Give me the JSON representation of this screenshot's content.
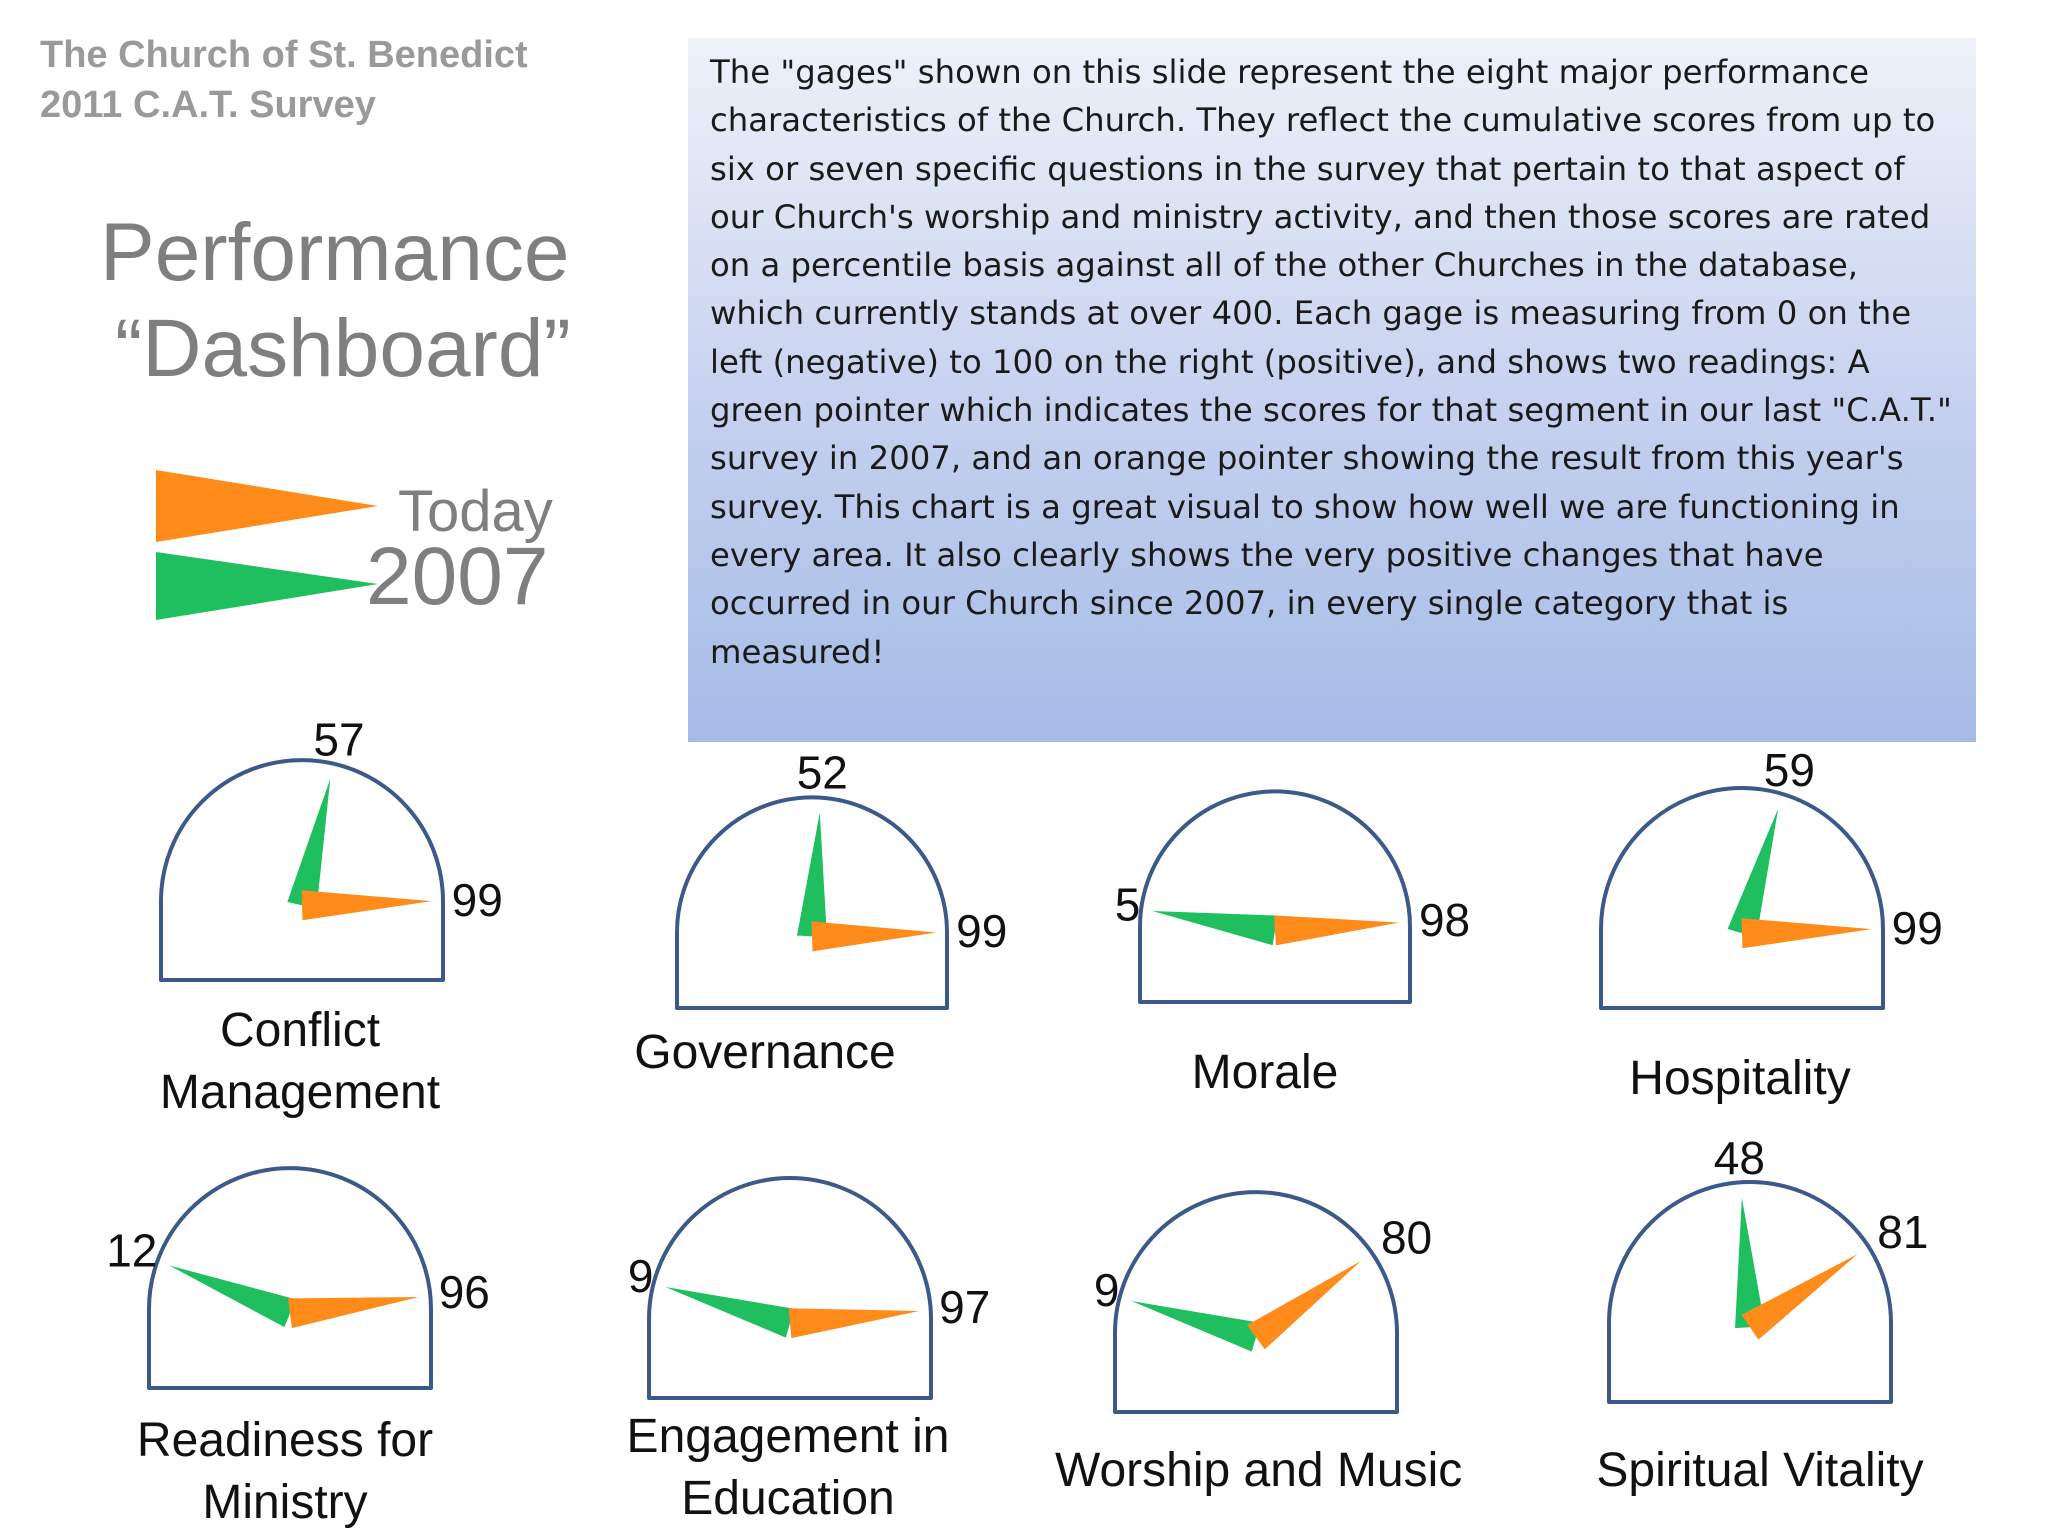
{
  "header": {
    "line1": "The Church of St. Benedict",
    "line2": "2011 C.A.T. Survey"
  },
  "title": {
    "line1": "Performance",
    "line2": "“Dashboard”"
  },
  "legend": {
    "today_label": "Today",
    "prior_label": "2007",
    "today_color": "#ff8c1a",
    "prior_color": "#1fbf5f"
  },
  "description": "The \"gages\" shown on this slide represent the eight major performance characteristics of the Church.  They reflect the cumulative scores from up to six or seven specific questions in the survey that pertain to that aspect of our Church's worship and ministry activity, and then those scores are rated on a percentile basis against all of the other Churches in the database, which currently stands at over 400.  Each gage is measuring from 0 on the left (negative) to 100 on the right (positive), and shows two readings:  A green pointer which indicates the scores for that segment in our last \"C.A.T.\" survey in 2007, and an orange pointer showing the result from this year's survey.  This chart is a great visual to show how well we are functioning in every area.  It also clearly shows the very positive changes that have occurred in our Church since 2007, in every single category that is measured!",
  "chart_data": {
    "type": "gauge",
    "range": [
      0,
      100
    ],
    "series": [
      {
        "name": "2007",
        "color": "#1fbf5f"
      },
      {
        "name": "Today",
        "color": "#ff8c1a"
      }
    ],
    "gauges": [
      {
        "name": "Conflict Management",
        "label_lines": [
          "Conflict",
          "Management"
        ],
        "value_2007": 57,
        "value_today": 99,
        "label_2007": "57",
        "label_today": "99"
      },
      {
        "name": "Governance",
        "label_lines": [
          "Governance"
        ],
        "value_2007": 52,
        "value_today": 99,
        "label_2007": "52",
        "label_today": "99"
      },
      {
        "name": "Morale",
        "label_lines": [
          "Morale"
        ],
        "value_2007": 5,
        "value_today": 98,
        "label_2007": "5",
        "label_today": "98"
      },
      {
        "name": "Hospitality",
        "label_lines": [
          "Hospitality"
        ],
        "value_2007": 59,
        "value_today": 99,
        "label_2007": "59",
        "label_today": "99"
      },
      {
        "name": "Readiness for Ministry",
        "label_lines": [
          "Readiness for",
          "Ministry"
        ],
        "value_2007": 12,
        "value_today": 96,
        "label_2007": "12",
        "label_today": "96"
      },
      {
        "name": "Engagement in Education",
        "label_lines": [
          "Engagement in",
          "Education"
        ],
        "value_2007": 9,
        "value_today": 97,
        "label_2007": "9",
        "label_today": "97"
      },
      {
        "name": "Worship and Music",
        "label_lines": [
          "Worship and Music"
        ],
        "value_2007": 9,
        "value_today": 80,
        "label_2007": "9",
        "label_today": "80"
      },
      {
        "name": "Spiritual Vitality",
        "label_lines": [
          "Spiritual Vitality"
        ],
        "value_2007": 48,
        "value_today": 81,
        "label_2007": "48",
        "label_today": "81"
      }
    ]
  }
}
